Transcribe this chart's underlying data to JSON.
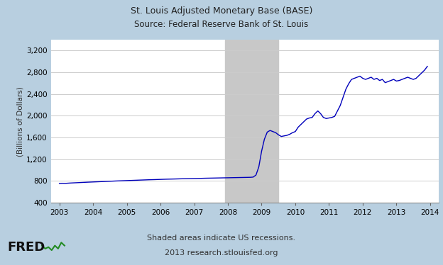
{
  "title_line1": "St. Louis Adjusted Monetary Base (BASE)",
  "title_line2": "Source: Federal Reserve Bank of St. Louis",
  "ylabel": "(Billions of Dollars)",
  "footer_line1": "Shaded areas indicate US recessions.",
  "footer_line2": "2013 research.stlouisfed.org",
  "xlim": [
    2002.75,
    2014.25
  ],
  "ylim": [
    400,
    3400
  ],
  "yticks": [
    400,
    800,
    1200,
    1600,
    2000,
    2400,
    2800,
    3200
  ],
  "xticks": [
    2003,
    2004,
    2005,
    2006,
    2007,
    2008,
    2009,
    2010,
    2011,
    2012,
    2013,
    2014
  ],
  "recession_start": 2007.917,
  "recession_end": 2009.5,
  "background_outer": "#b8cfe0",
  "background_plot": "#ffffff",
  "line_color": "#0000bb",
  "recession_color": "#c8c8c8",
  "grid_color": "#cccccc",
  "data_x": [
    2003.0,
    2003.083,
    2003.167,
    2003.25,
    2003.333,
    2003.417,
    2003.5,
    2003.583,
    2003.667,
    2003.75,
    2003.833,
    2003.917,
    2004.0,
    2004.083,
    2004.167,
    2004.25,
    2004.333,
    2004.417,
    2004.5,
    2004.583,
    2004.667,
    2004.75,
    2004.833,
    2004.917,
    2005.0,
    2005.083,
    2005.167,
    2005.25,
    2005.333,
    2005.417,
    2005.5,
    2005.583,
    2005.667,
    2005.75,
    2005.833,
    2005.917,
    2006.0,
    2006.083,
    2006.167,
    2006.25,
    2006.333,
    2006.417,
    2006.5,
    2006.583,
    2006.667,
    2006.75,
    2006.833,
    2006.917,
    2007.0,
    2007.083,
    2007.167,
    2007.25,
    2007.333,
    2007.417,
    2007.5,
    2007.583,
    2007.667,
    2007.75,
    2007.833,
    2007.917,
    2008.0,
    2008.083,
    2008.167,
    2008.25,
    2008.333,
    2008.417,
    2008.5,
    2008.583,
    2008.667,
    2008.75,
    2008.833,
    2008.917,
    2009.0,
    2009.083,
    2009.167,
    2009.25,
    2009.333,
    2009.417,
    2009.5,
    2009.583,
    2009.667,
    2009.75,
    2009.833,
    2009.917,
    2010.0,
    2010.083,
    2010.167,
    2010.25,
    2010.333,
    2010.417,
    2010.5,
    2010.583,
    2010.667,
    2010.75,
    2010.833,
    2010.917,
    2011.0,
    2011.083,
    2011.167,
    2011.25,
    2011.333,
    2011.417,
    2011.5,
    2011.583,
    2011.667,
    2011.75,
    2011.833,
    2011.917,
    2012.0,
    2012.083,
    2012.167,
    2012.25,
    2012.333,
    2012.417,
    2012.5,
    2012.583,
    2012.667,
    2012.75,
    2012.833,
    2012.917,
    2013.0,
    2013.083,
    2013.167,
    2013.25,
    2013.333,
    2013.417,
    2013.5,
    2013.583,
    2013.667,
    2013.75,
    2013.833,
    2013.917
  ],
  "data_y": [
    755,
    758,
    756,
    760,
    763,
    766,
    768,
    770,
    773,
    776,
    778,
    780,
    782,
    784,
    786,
    788,
    790,
    793,
    795,
    798,
    800,
    802,
    804,
    806,
    808,
    810,
    811,
    813,
    815,
    817,
    819,
    821,
    823,
    824,
    826,
    828,
    830,
    831,
    833,
    834,
    836,
    837,
    839,
    840,
    841,
    843,
    844,
    845,
    846,
    847,
    848,
    850,
    851,
    852,
    853,
    854,
    855,
    856,
    857,
    858,
    859,
    860,
    861,
    862,
    863,
    864,
    865,
    866,
    868,
    872,
    910,
    1060,
    1350,
    1570,
    1700,
    1730,
    1710,
    1690,
    1650,
    1620,
    1630,
    1640,
    1660,
    1690,
    1710,
    1790,
    1840,
    1890,
    1940,
    1960,
    1970,
    2040,
    2090,
    2040,
    1970,
    1950,
    1960,
    1970,
    1990,
    2090,
    2190,
    2340,
    2490,
    2590,
    2670,
    2690,
    2710,
    2730,
    2690,
    2670,
    2690,
    2710,
    2670,
    2690,
    2650,
    2670,
    2610,
    2630,
    2650,
    2670,
    2640,
    2650,
    2670,
    2690,
    2710,
    2690,
    2670,
    2690,
    2740,
    2790,
    2840,
    2910
  ]
}
